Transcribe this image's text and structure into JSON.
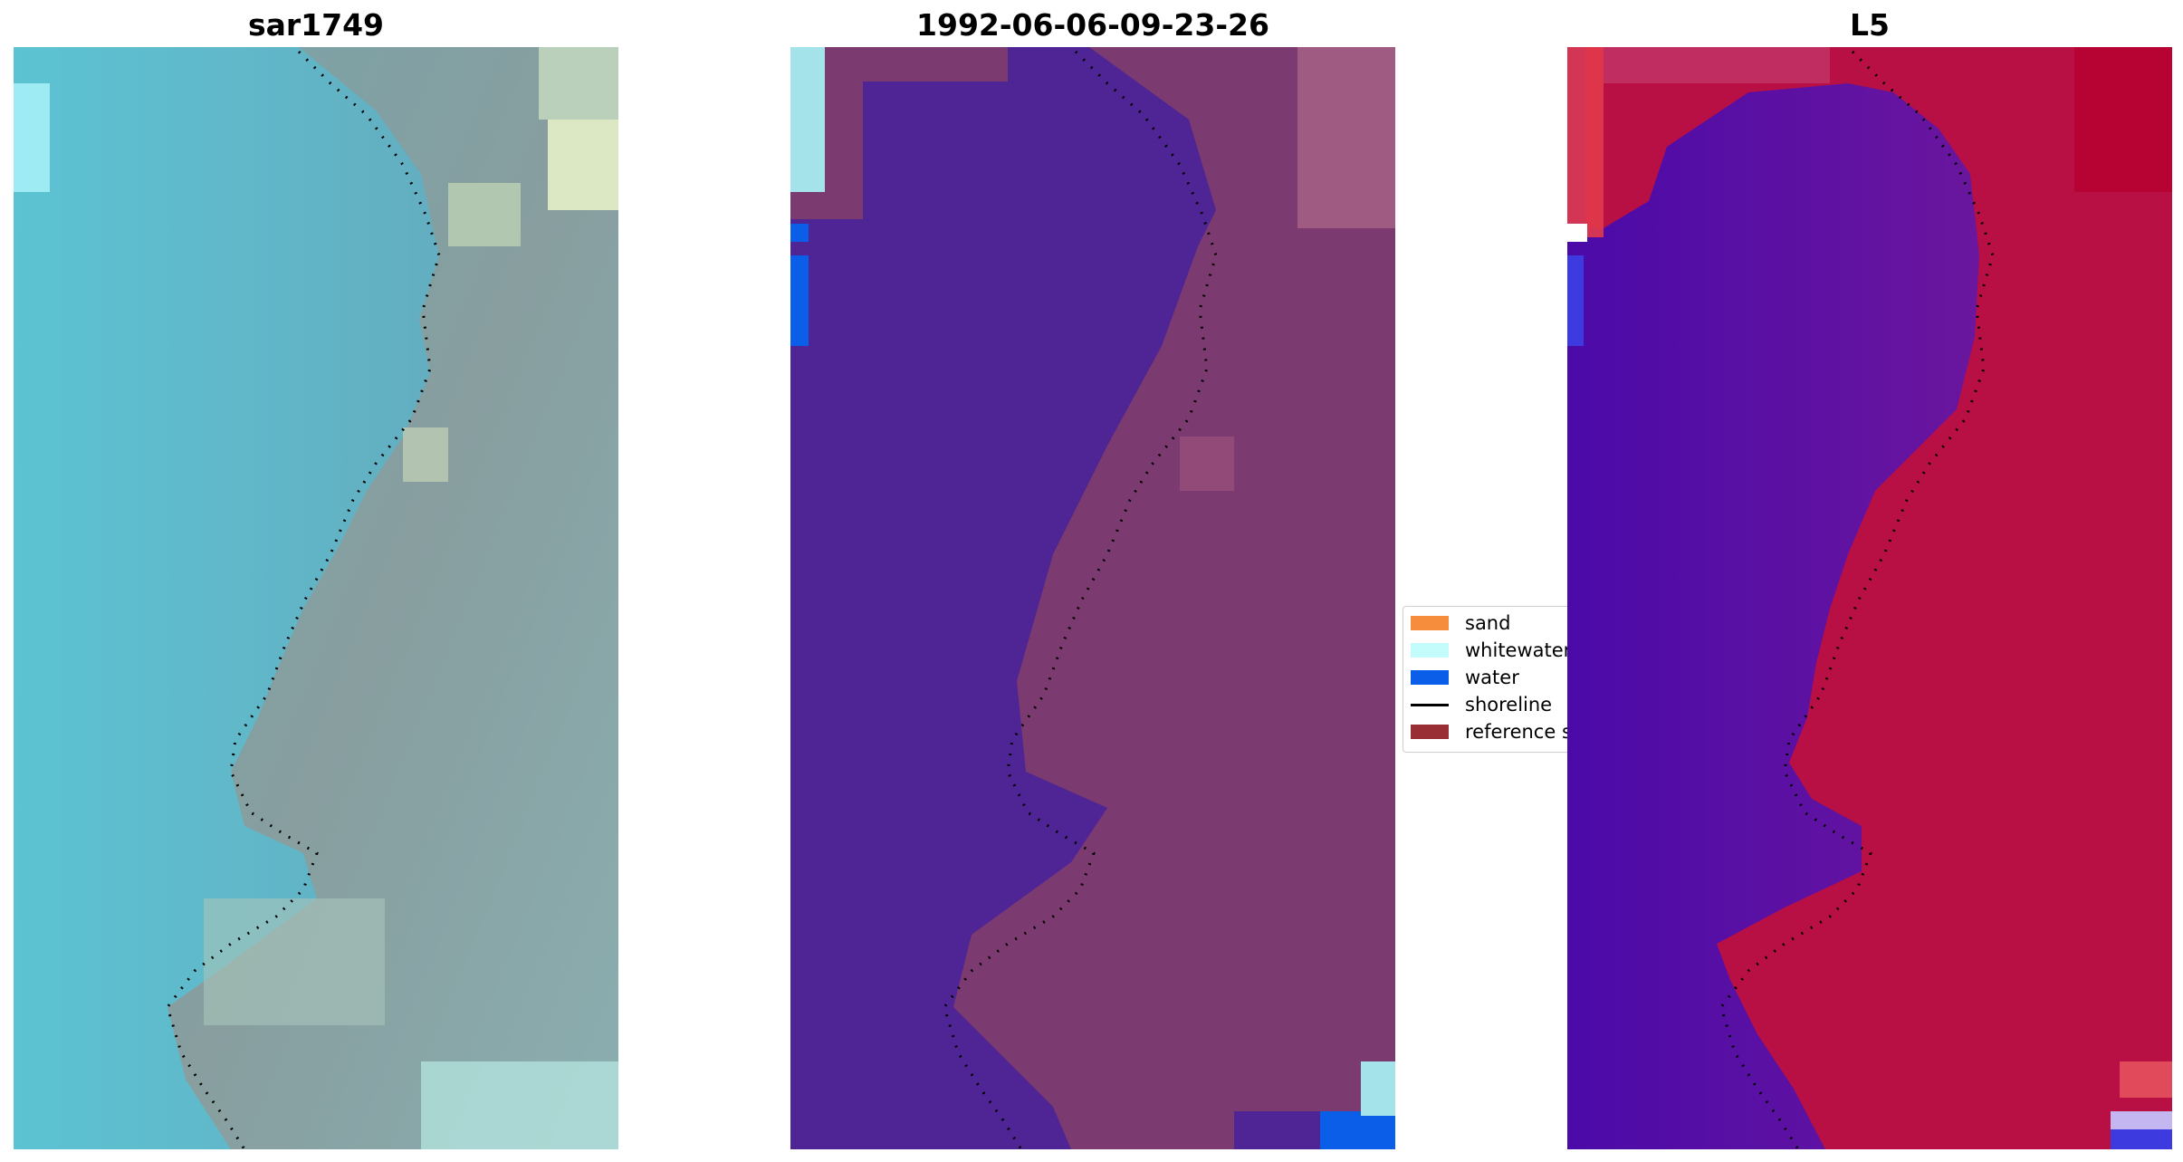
{
  "panels": [
    {
      "id": "sar",
      "title": "sar1749"
    },
    {
      "id": "classified",
      "title": "1992-06-06-09-23-26"
    },
    {
      "id": "index",
      "title": "L5"
    }
  ],
  "legend": {
    "items": [
      {
        "label": "sand",
        "color": "#f58d3d",
        "kind": "patch"
      },
      {
        "label": "whitewater",
        "color": "#c4fbfb",
        "kind": "patch"
      },
      {
        "label": "water",
        "color": "#0a5ee8",
        "kind": "patch"
      },
      {
        "label": "shoreline",
        "color": "#000000",
        "kind": "line"
      },
      {
        "label": "reference s",
        "color": "#9a2e35",
        "kind": "patch"
      }
    ]
  },
  "colors": {
    "sar_water": "#5fb5c9",
    "sar_land": "#7d9ea7",
    "class_water": "#4f2495",
    "class_land": "#7b3a70",
    "index_water": "#5a14a6",
    "index_land": "#b80f45",
    "shoreline": "#000000"
  },
  "shoreline_icon": "dotted-shoreline-line"
}
